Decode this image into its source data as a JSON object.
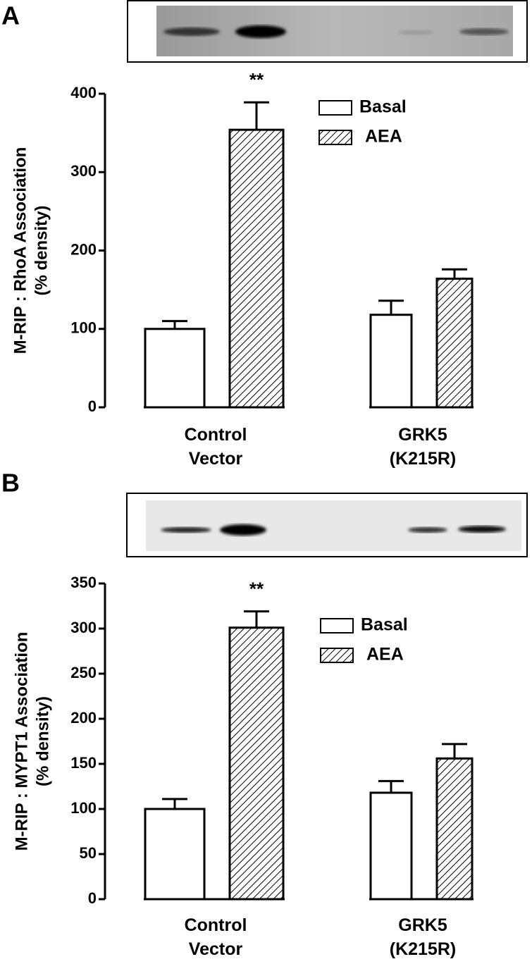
{
  "chart_data": [
    {
      "type": "bar",
      "panel": "A",
      "ylabel": [
        "M-RIP : RhoA Association",
        "(% density)"
      ],
      "categories": [
        "Control Vector",
        "GRK5 (K215R)"
      ],
      "series": [
        {
          "name": "Basal",
          "color": "#ffffff",
          "values": [
            100,
            118
          ],
          "errors": [
            10,
            18
          ]
        },
        {
          "name": "AEA",
          "color": "#ffffff",
          "hatch": "diagonal",
          "values": [
            354,
            164
          ],
          "errors": [
            35,
            12
          ]
        }
      ],
      "annotation": "**",
      "ylim": [
        0,
        400
      ],
      "yticks": [
        0,
        100,
        200,
        300,
        400
      ]
    },
    {
      "type": "bar",
      "panel": "B",
      "ylabel": [
        "M-RIP : MYPT1 Association",
        "(% density)"
      ],
      "categories": [
        "Control Vector",
        "GRK5 (K215R)"
      ],
      "series": [
        {
          "name": "Basal",
          "color": "#ffffff",
          "values": [
            100,
            118
          ],
          "errors": [
            11,
            13
          ]
        },
        {
          "name": "AEA",
          "color": "#ffffff",
          "hatch": "diagonal",
          "values": [
            301,
            156
          ],
          "errors": [
            18,
            16
          ]
        }
      ],
      "annotation": "**",
      "ylim": [
        0,
        350
      ],
      "yticks": [
        0,
        50,
        100,
        150,
        200,
        250,
        300,
        350
      ]
    }
  ]
}
